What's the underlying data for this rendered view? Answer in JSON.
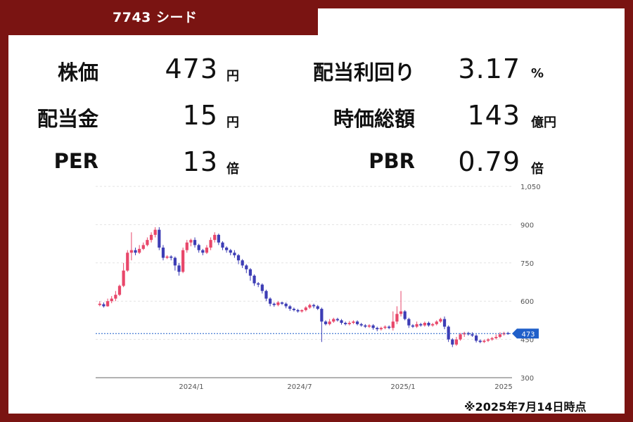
{
  "header": {
    "title": "7743 シード"
  },
  "metrics": [
    {
      "label": "株価",
      "value": "473",
      "unit": "円"
    },
    {
      "label": "配当金",
      "value": "15",
      "unit": "円"
    },
    {
      "label": "PER",
      "value": "13",
      "unit": "倍"
    },
    {
      "label": "配当利回り",
      "value": "3.17",
      "unit": "%"
    },
    {
      "label": "時価総額",
      "value": "143",
      "unit": "億円"
    },
    {
      "label": "PBR",
      "value": "0.79",
      "unit": "倍"
    }
  ],
  "note": "※2025年7月14日時点",
  "colors": {
    "frame": "#7a1412",
    "up": "#e8476a",
    "down": "#3d3db5",
    "price_tag": "#1f5fc9",
    "grid": "#e3e3e3"
  },
  "chart_data": {
    "type": "candlestick",
    "x_tick_labels": [
      "2024/1",
      "2024/7",
      "2025/1",
      "2025"
    ],
    "y_ticks": [
      300,
      450,
      600,
      750,
      900,
      1050
    ],
    "y_tick_labels": [
      "300",
      "450",
      "600",
      "750",
      "900",
      "1,050"
    ],
    "ylim": [
      300,
      1050
    ],
    "current_price": 473,
    "current_price_label": "473",
    "grid": true,
    "candles": [
      [
        585,
        590,
        580,
        600
      ],
      [
        588,
        580,
        575,
        595
      ],
      [
        580,
        600,
        578,
        610
      ],
      [
        600,
        610,
        592,
        620
      ],
      [
        610,
        625,
        600,
        640
      ],
      [
        625,
        660,
        620,
        665
      ],
      [
        660,
        720,
        655,
        750
      ],
      [
        720,
        790,
        715,
        800
      ],
      [
        790,
        800,
        760,
        870
      ],
      [
        800,
        790,
        780,
        810
      ],
      [
        790,
        805,
        785,
        820
      ],
      [
        805,
        820,
        800,
        830
      ],
      [
        820,
        840,
        815,
        850
      ],
      [
        840,
        860,
        830,
        870
      ],
      [
        860,
        880,
        850,
        890
      ],
      [
        880,
        810,
        800,
        890
      ],
      [
        810,
        770,
        760,
        820
      ],
      [
        770,
        775,
        765,
        780
      ],
      [
        775,
        770,
        760,
        780
      ],
      [
        770,
        740,
        720,
        775
      ],
      [
        740,
        715,
        700,
        750
      ],
      [
        715,
        800,
        710,
        810
      ],
      [
        800,
        830,
        790,
        840
      ],
      [
        830,
        840,
        815,
        845
      ],
      [
        840,
        820,
        810,
        850
      ],
      [
        820,
        800,
        790,
        825
      ],
      [
        800,
        790,
        780,
        805
      ],
      [
        790,
        810,
        785,
        820
      ],
      [
        810,
        840,
        800,
        850
      ],
      [
        840,
        860,
        830,
        870
      ],
      [
        860,
        830,
        820,
        865
      ],
      [
        830,
        810,
        800,
        835
      ],
      [
        810,
        800,
        790,
        815
      ],
      [
        800,
        790,
        780,
        805
      ],
      [
        790,
        780,
        770,
        800
      ],
      [
        780,
        760,
        745,
        785
      ],
      [
        760,
        740,
        730,
        765
      ],
      [
        740,
        725,
        710,
        745
      ],
      [
        725,
        700,
        680,
        730
      ],
      [
        700,
        670,
        660,
        705
      ],
      [
        670,
        665,
        655,
        675
      ],
      [
        665,
        640,
        630,
        670
      ],
      [
        640,
        610,
        600,
        645
      ],
      [
        610,
        590,
        580,
        615
      ],
      [
        590,
        585,
        578,
        595
      ],
      [
        585,
        595,
        580,
        600
      ],
      [
        595,
        590,
        585,
        598
      ],
      [
        590,
        580,
        572,
        595
      ],
      [
        580,
        570,
        562,
        585
      ],
      [
        570,
        565,
        560,
        575
      ],
      [
        565,
        560,
        555,
        570
      ],
      [
        560,
        565,
        555,
        568
      ],
      [
        565,
        575,
        560,
        580
      ],
      [
        575,
        585,
        570,
        590
      ],
      [
        585,
        580,
        572,
        590
      ],
      [
        580,
        570,
        565,
        585
      ],
      [
        570,
        520,
        440,
        575
      ],
      [
        520,
        510,
        505,
        525
      ],
      [
        510,
        520,
        505,
        530
      ],
      [
        520,
        530,
        515,
        535
      ],
      [
        530,
        525,
        520,
        535
      ],
      [
        525,
        515,
        508,
        530
      ],
      [
        515,
        510,
        505,
        520
      ],
      [
        510,
        515,
        505,
        522
      ],
      [
        515,
        520,
        510,
        525
      ],
      [
        520,
        510,
        505,
        525
      ],
      [
        510,
        505,
        500,
        515
      ],
      [
        505,
        500,
        495,
        510
      ],
      [
        500,
        505,
        495,
        510
      ],
      [
        505,
        495,
        488,
        510
      ],
      [
        495,
        490,
        482,
        500
      ],
      [
        490,
        495,
        485,
        500
      ],
      [
        495,
        500,
        490,
        505
      ],
      [
        500,
        495,
        490,
        505
      ],
      [
        495,
        520,
        485,
        560
      ],
      [
        520,
        550,
        510,
        580
      ],
      [
        550,
        560,
        540,
        640
      ],
      [
        560,
        530,
        525,
        565
      ],
      [
        530,
        505,
        495,
        535
      ],
      [
        505,
        500,
        495,
        510
      ],
      [
        500,
        510,
        495,
        520
      ],
      [
        510,
        505,
        500,
        515
      ],
      [
        505,
        515,
        500,
        520
      ],
      [
        515,
        505,
        500,
        520
      ],
      [
        505,
        510,
        500,
        515
      ],
      [
        510,
        520,
        505,
        525
      ],
      [
        520,
        530,
        515,
        535
      ],
      [
        530,
        500,
        490,
        540
      ],
      [
        500,
        450,
        440,
        505
      ],
      [
        450,
        430,
        420,
        455
      ],
      [
        430,
        450,
        425,
        460
      ],
      [
        450,
        470,
        445,
        475
      ],
      [
        470,
        475,
        460,
        480
      ],
      [
        475,
        470,
        465,
        480
      ],
      [
        470,
        465,
        460,
        478
      ],
      [
        465,
        445,
        438,
        470
      ],
      [
        445,
        440,
        435,
        450
      ],
      [
        440,
        445,
        436,
        450
      ],
      [
        445,
        450,
        440,
        455
      ],
      [
        450,
        455,
        445,
        460
      ],
      [
        455,
        460,
        450,
        470
      ],
      [
        460,
        470,
        455,
        478
      ],
      [
        470,
        475,
        465,
        480
      ],
      [
        475,
        473,
        468,
        480
      ]
    ]
  }
}
